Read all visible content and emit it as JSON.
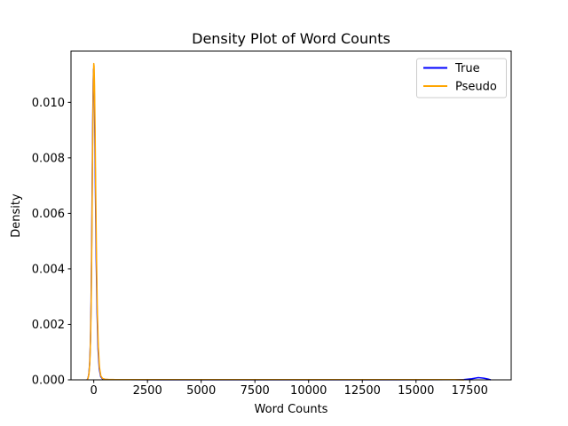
{
  "chart_data": {
    "type": "line",
    "title": "Density Plot of Word Counts",
    "xlabel": "Word Counts",
    "ylabel": "Density",
    "background_color": "#ffffff",
    "grid": false,
    "xlim": [
      -1060,
      19430
    ],
    "ylim": [
      0,
      0.01185
    ],
    "xticks": {
      "values": [
        0,
        2500,
        5000,
        7500,
        10000,
        12500,
        15000,
        17500
      ],
      "labels": [
        "0",
        "2500",
        "5000",
        "7500",
        "10000",
        "12500",
        "15000",
        "17500"
      ]
    },
    "yticks": {
      "values": [
        0.0,
        0.002,
        0.004,
        0.006,
        0.008,
        0.01
      ],
      "labels": [
        "0.000",
        "0.002",
        "0.004",
        "0.006",
        "0.008",
        "0.010"
      ]
    },
    "legend": {
      "position": "upper right",
      "border_color": "#cccccc"
    },
    "series": [
      {
        "name": "True",
        "color": "#0000ff",
        "peak_value": 0.0112,
        "x": [
          -310,
          -270,
          -230,
          -190,
          -155,
          -125,
          -95,
          -70,
          -45,
          -25,
          -10,
          5,
          25,
          50,
          80,
          115,
          155,
          200,
          255,
          320,
          400,
          520,
          700,
          1000,
          1600,
          3000,
          6000,
          10000,
          14000,
          16500,
          17200,
          17600,
          17900,
          18150,
          18350,
          18480
        ],
        "y": [
          0,
          6e-05,
          0.0002,
          0.0006,
          0.0014,
          0.0028,
          0.005,
          0.0074,
          0.0095,
          0.0108,
          0.0112,
          0.0111,
          0.0104,
          0.0089,
          0.0066,
          0.0043,
          0.0024,
          0.0011,
          0.0004,
          0.00012,
          4e-05,
          1.5e-05,
          1e-05,
          8e-06,
          6e-06,
          5e-06,
          5e-06,
          5e-06,
          5e-06,
          6e-06,
          1e-05,
          4e-05,
          8e-05,
          6e-05,
          3e-05,
          0
        ]
      },
      {
        "name": "Pseudo",
        "color": "#ffa500",
        "peak_value": 0.0114,
        "x": [
          -300,
          -260,
          -220,
          -180,
          -145,
          -115,
          -85,
          -60,
          -35,
          -15,
          0,
          15,
          35,
          60,
          90,
          125,
          165,
          210,
          265,
          330,
          410,
          530,
          710,
          1000,
          1600,
          3000,
          6000,
          10000,
          14000,
          16000,
          16800,
          17240
        ],
        "y": [
          0,
          8e-05,
          0.00025,
          0.0007,
          0.0016,
          0.0031,
          0.0054,
          0.0078,
          0.0098,
          0.011,
          0.0114,
          0.0113,
          0.0106,
          0.0091,
          0.0068,
          0.0045,
          0.0025,
          0.0012,
          0.00045,
          0.00014,
          5e-05,
          2e-05,
          1.2e-05,
          1e-05,
          8e-06,
          7e-06,
          7e-06,
          7e-06,
          7e-06,
          8e-06,
          8e-06,
          0
        ]
      }
    ]
  }
}
